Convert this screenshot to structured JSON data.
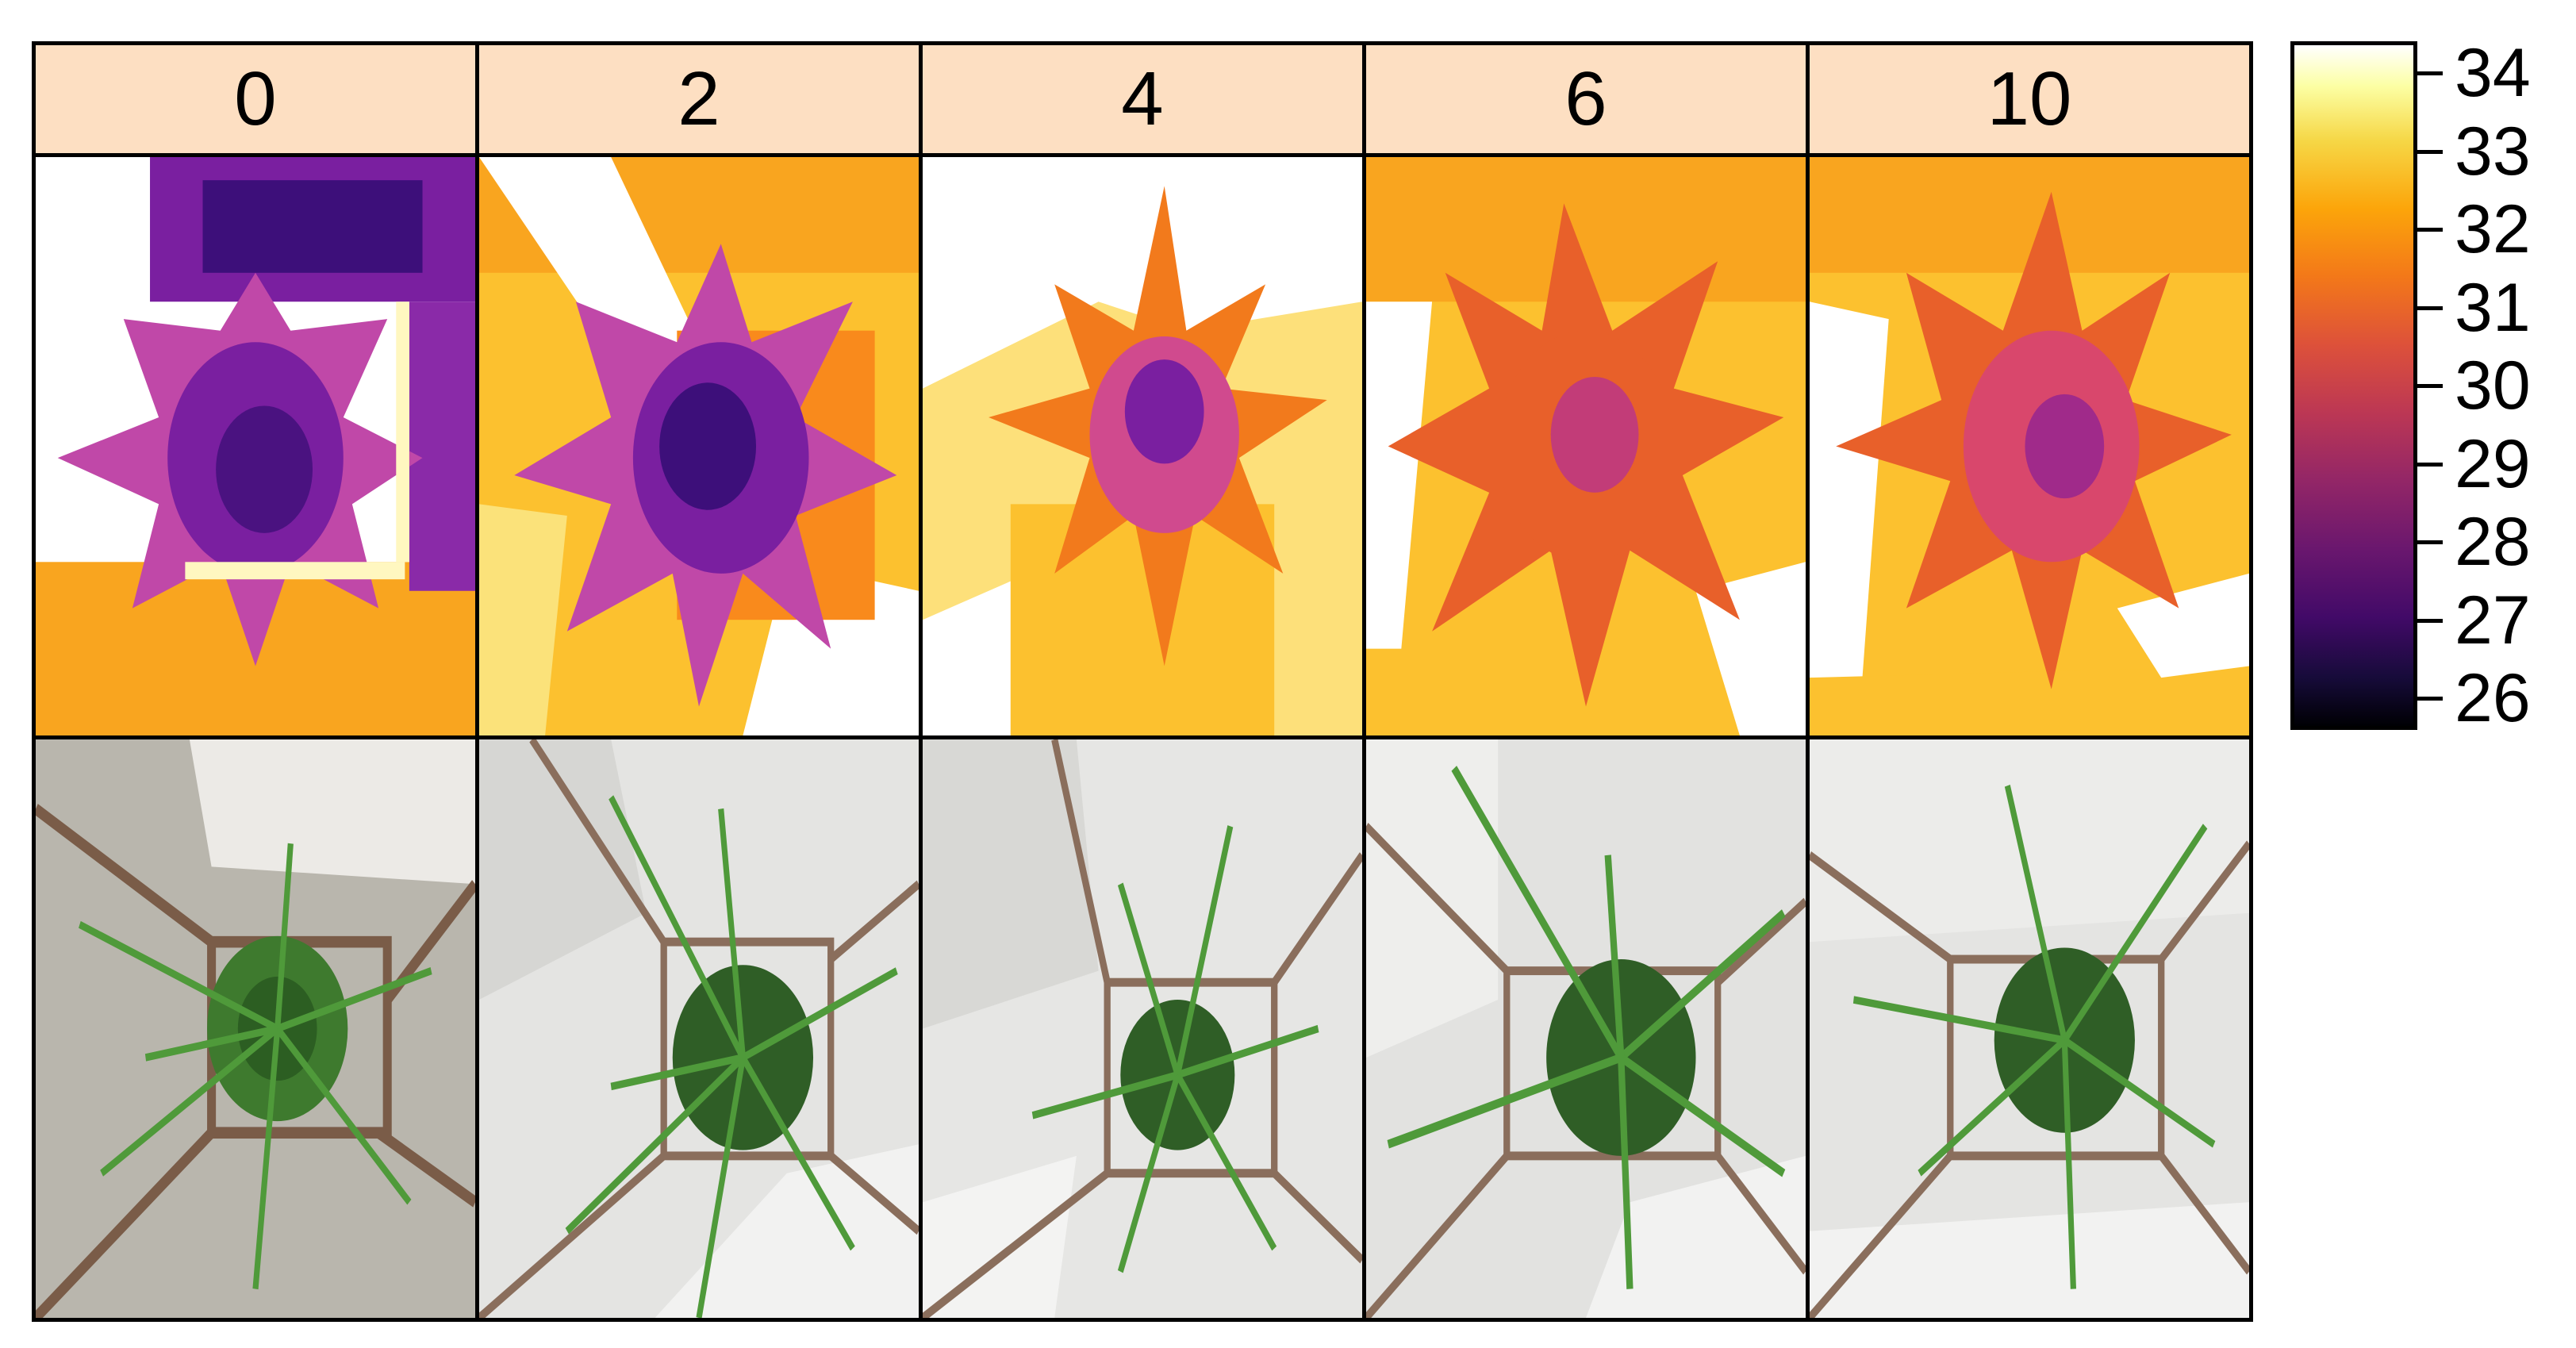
{
  "columns": [
    {
      "label": "0"
    },
    {
      "label": "2"
    },
    {
      "label": "4"
    },
    {
      "label": "6"
    },
    {
      "label": "10"
    }
  ],
  "colorbar": {
    "min": 26,
    "max": 34,
    "ticks": [
      "34",
      "33",
      "32",
      "31",
      "30",
      "29",
      "28",
      "27",
      "26"
    ],
    "palette": [
      "#000004",
      "#420a68",
      "#932667",
      "#dd513a",
      "#fca50a",
      "#f6d746",
      "#ffffff"
    ]
  },
  "rows": [
    {
      "kind": "thermal-image"
    },
    {
      "kind": "plant-photo"
    }
  ],
  "colors": {
    "header_bg": "#fddfc2",
    "border": "#000000"
  }
}
